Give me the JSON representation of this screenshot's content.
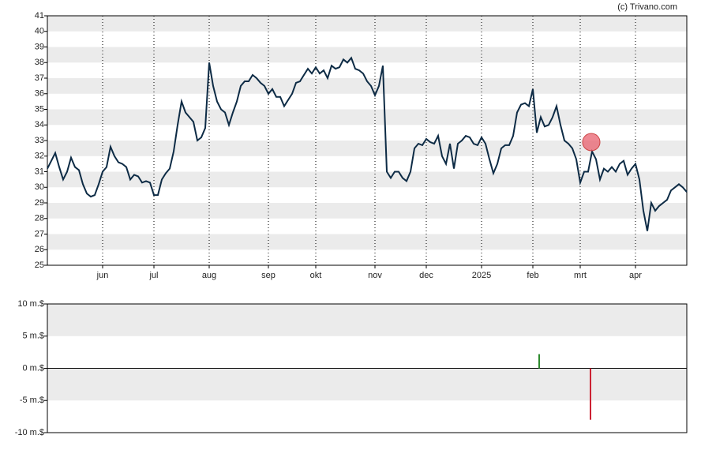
{
  "credit": "(c) Trivano.com",
  "chart_data": [
    {
      "type": "line",
      "color": "#0d2b45",
      "xlim": [
        0,
        162
      ],
      "xticks": [
        {
          "value": 14,
          "label": "jun"
        },
        {
          "value": 27,
          "label": "jul"
        },
        {
          "value": 41,
          "label": "aug"
        },
        {
          "value": 56,
          "label": "sep"
        },
        {
          "value": 68,
          "label": "okt"
        },
        {
          "value": 83,
          "label": "nov"
        },
        {
          "value": 96,
          "label": "dec"
        },
        {
          "value": 110,
          "label": "2025"
        },
        {
          "value": 123,
          "label": "feb"
        },
        {
          "value": 135,
          "label": "mrt"
        },
        {
          "value": 149,
          "label": "apr"
        }
      ],
      "ylim": [
        25,
        41
      ],
      "yticks": [
        25,
        26,
        27,
        28,
        29,
        30,
        31,
        32,
        33,
        34,
        35,
        36,
        37,
        38,
        39,
        40,
        41
      ],
      "grid": true,
      "values": [
        31.2,
        31.7,
        32.2,
        31.3,
        30.5,
        31.0,
        31.9,
        31.3,
        31.1,
        30.2,
        29.6,
        29.4,
        29.5,
        30.2,
        31.0,
        31.3,
        32.6,
        32.0,
        31.6,
        31.5,
        31.3,
        30.5,
        30.8,
        30.7,
        30.3,
        30.4,
        30.3,
        29.5,
        29.5,
        30.5,
        30.9,
        31.2,
        32.3,
        34.0,
        35.5,
        34.8,
        34.5,
        34.2,
        33.0,
        33.2,
        33.8,
        38.0,
        36.5,
        35.5,
        35.0,
        34.8,
        34.0,
        34.8,
        35.5,
        36.5,
        36.8,
        36.8,
        37.2,
        37.0,
        36.7,
        36.5,
        36.0,
        36.3,
        35.8,
        35.8,
        35.2,
        35.6,
        36.0,
        36.7,
        36.8,
        37.2,
        37.6,
        37.3,
        37.7,
        37.3,
        37.5,
        37.0,
        37.8,
        37.6,
        37.7,
        38.2,
        38.0,
        38.3,
        37.6,
        37.5,
        37.3,
        36.8,
        36.5,
        35.9,
        36.5,
        37.8,
        31.0,
        30.6,
        31.0,
        31.0,
        30.6,
        30.4,
        31.0,
        32.5,
        32.8,
        32.7,
        33.1,
        32.9,
        32.8,
        33.3,
        32.0,
        31.5,
        32.8,
        31.2,
        32.8,
        33.0,
        33.3,
        33.2,
        32.8,
        32.7,
        33.2,
        32.8,
        31.8,
        30.9,
        31.5,
        32.5,
        32.7,
        32.7,
        33.3,
        34.8,
        35.3,
        35.4,
        35.2,
        36.3,
        33.5,
        34.5,
        33.9,
        34.0,
        34.5,
        35.2,
        34.0,
        33.0,
        32.8,
        32.5,
        31.8,
        30.3,
        31.0,
        31.0,
        32.3,
        31.8,
        30.5,
        31.2,
        31.0,
        31.3,
        31.0,
        31.5,
        31.7,
        30.8,
        31.2,
        31.5,
        30.5,
        28.5,
        27.2,
        29.0,
        28.5,
        28.8,
        29.0,
        29.2,
        29.8,
        30.0,
        30.2,
        30.0,
        29.7
      ],
      "marker": {
        "x": 137.8,
        "value": 32.9,
        "color": "#e8606e"
      }
    },
    {
      "type": "bar",
      "xlim": [
        0,
        162
      ],
      "ylim": [
        -10,
        10
      ],
      "yticks": [
        {
          "value": -10,
          "label": "-10 m.$"
        },
        {
          "value": -5,
          "label": "-5 m.$"
        },
        {
          "value": 0,
          "label": "0 m.$"
        },
        {
          "value": 5,
          "label": "5 m.$"
        },
        {
          "value": 10,
          "label": "10 m.$"
        }
      ],
      "grid": true,
      "x": [
        124.6,
        137.6
      ],
      "values": [
        2.2,
        -8
      ],
      "colors": [
        "#2e8b2e",
        "#cc2233"
      ]
    }
  ]
}
